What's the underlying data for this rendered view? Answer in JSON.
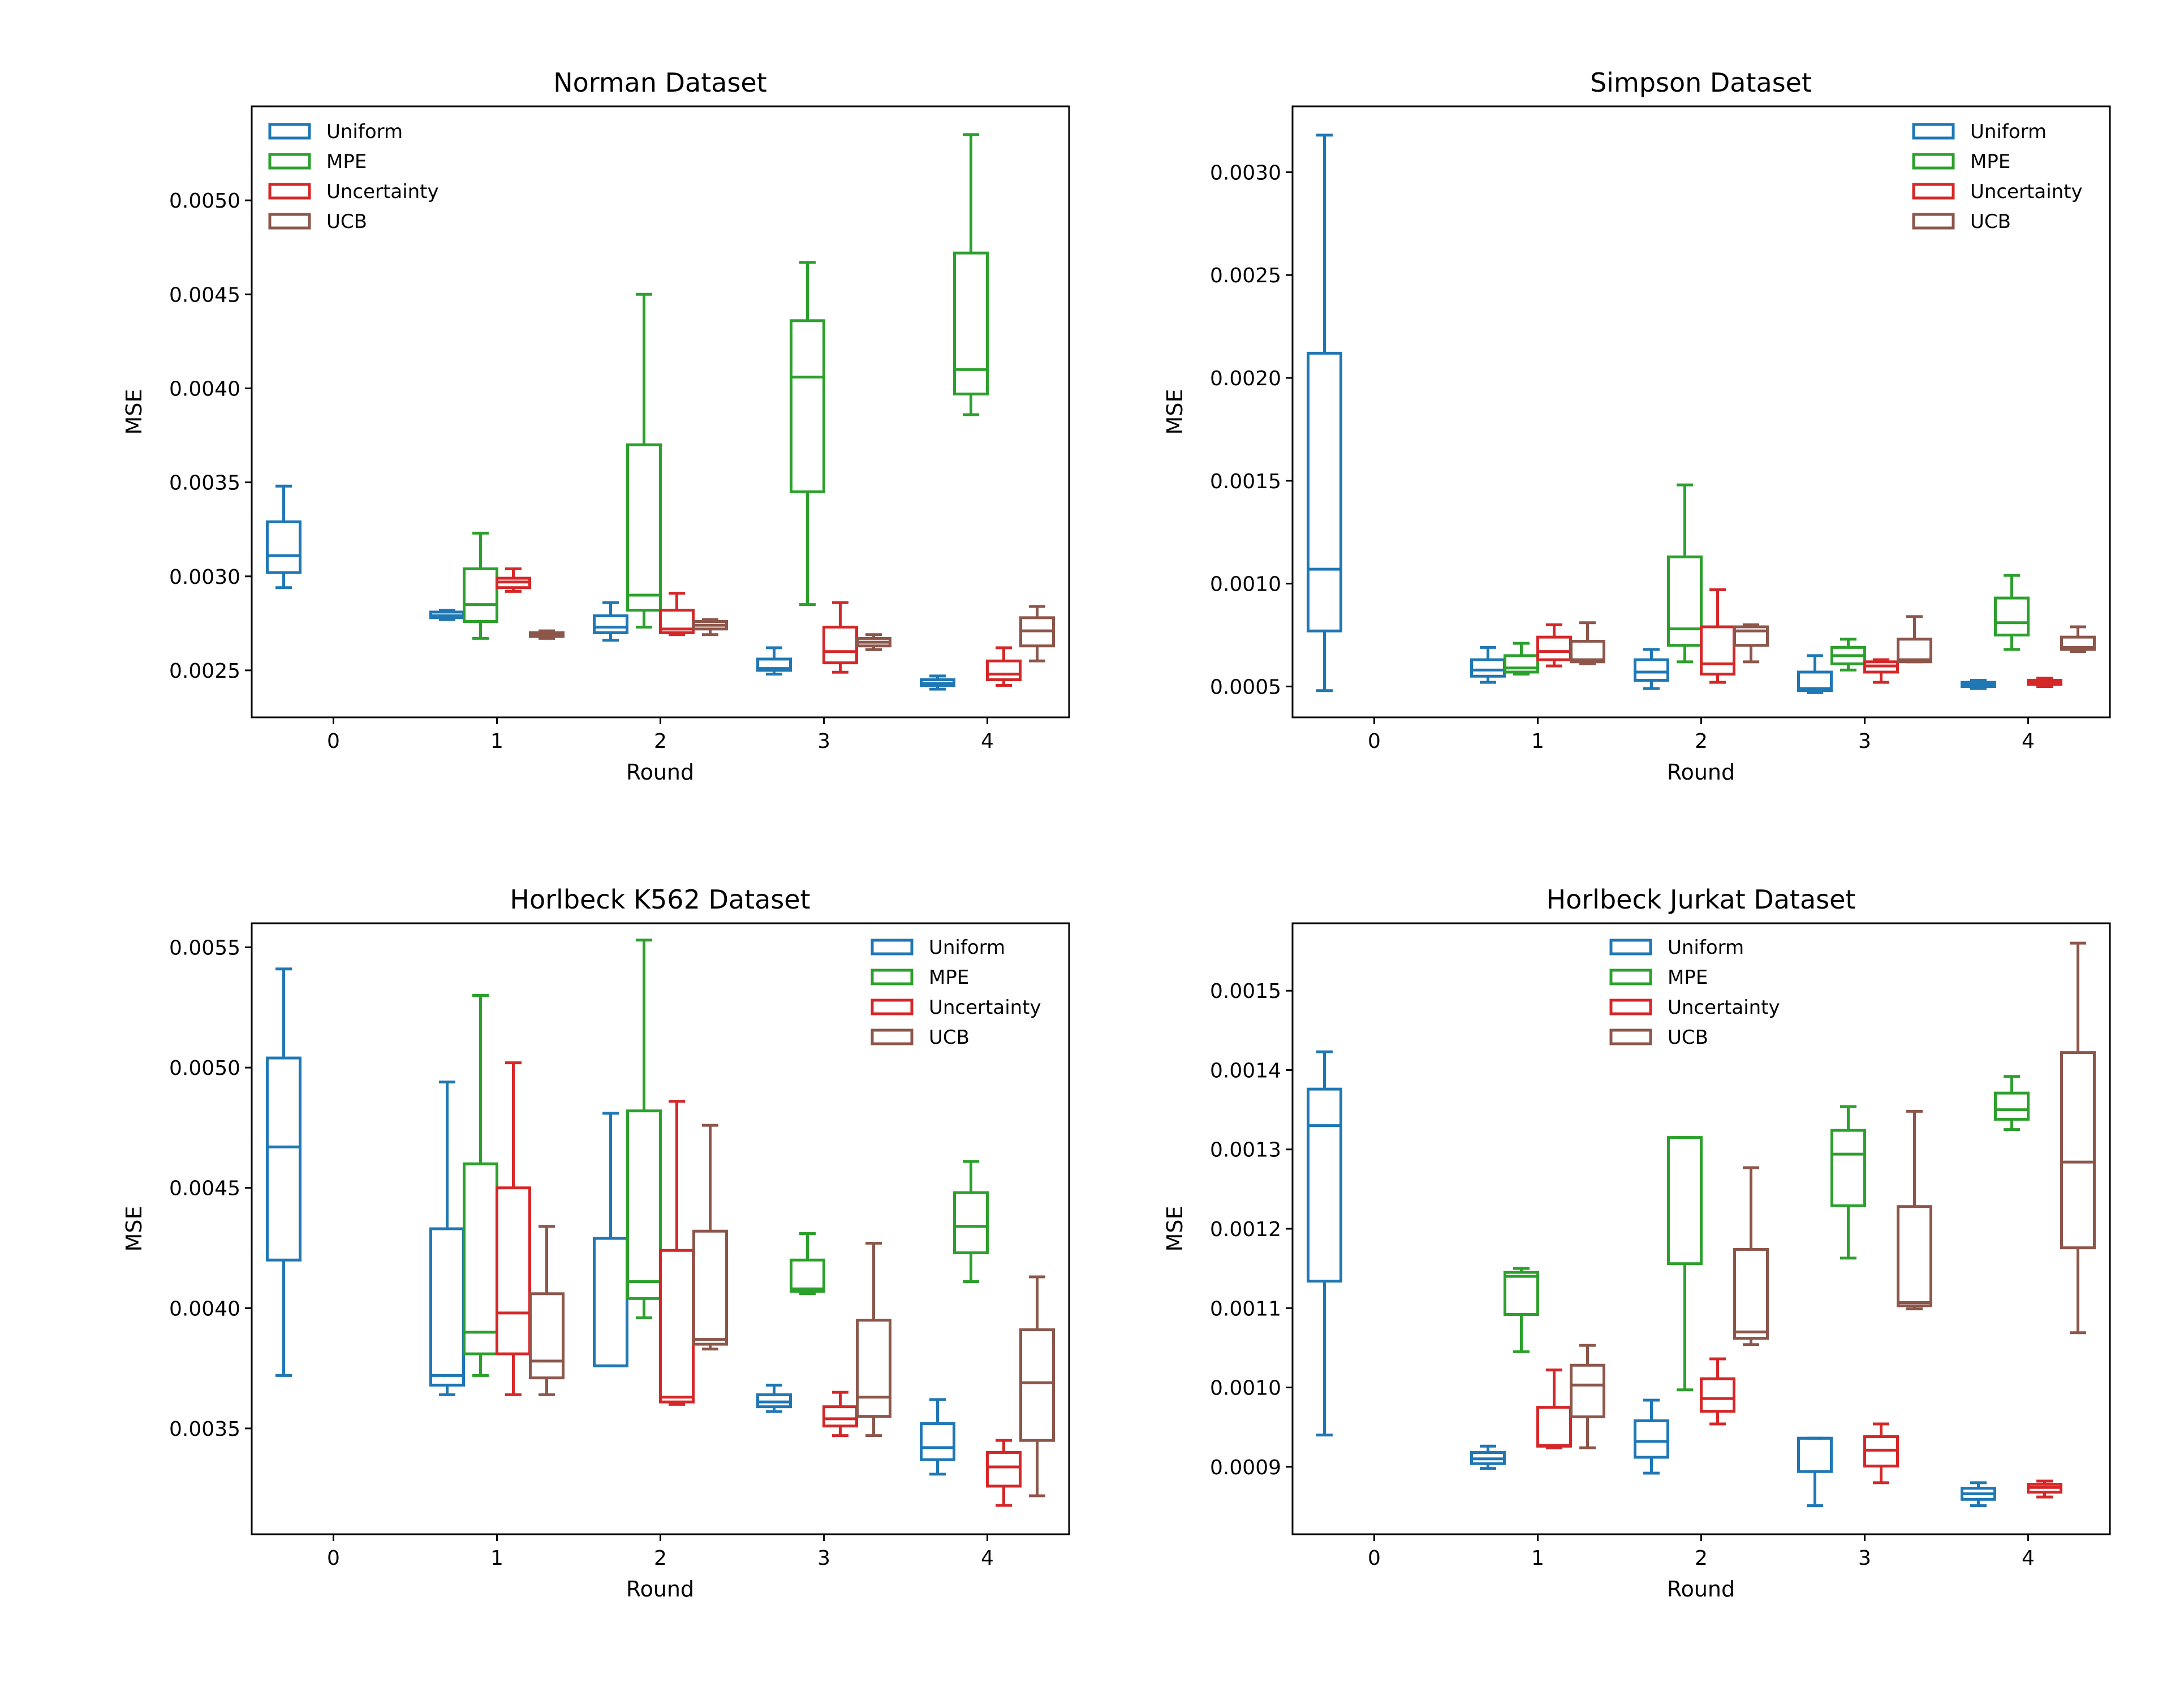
{
  "chart_data": [
    {
      "type": "box",
      "title": "Norman Dataset",
      "xlabel": "Round",
      "ylabel": "MSE",
      "categories": [
        "0",
        "1",
        "2",
        "3",
        "4"
      ],
      "ylim": [
        0.00225,
        0.0055
      ],
      "yticks": [
        "0.0025",
        "0.0030",
        "0.0035",
        "0.0040",
        "0.0045",
        "0.0050"
      ],
      "legend_position": "top-left",
      "series": [
        {
          "name": "Uniform",
          "color": "#1f77b4",
          "boxes": [
            {
              "round": 0,
              "whislo": 0.00294,
              "q1": 0.00302,
              "med": 0.00311,
              "q3": 0.00329,
              "whishi": 0.00348
            },
            {
              "round": 1,
              "whislo": 0.00277,
              "q1": 0.00278,
              "med": 0.00279,
              "q3": 0.00281,
              "whishi": 0.00282
            },
            {
              "round": 2,
              "whislo": 0.00266,
              "q1": 0.0027,
              "med": 0.00273,
              "q3": 0.00279,
              "whishi": 0.00286
            },
            {
              "round": 3,
              "whislo": 0.00248,
              "q1": 0.0025,
              "med": 0.00251,
              "q3": 0.00256,
              "whishi": 0.00262
            },
            {
              "round": 4,
              "whislo": 0.0024,
              "q1": 0.00242,
              "med": 0.00243,
              "q3": 0.00245,
              "whishi": 0.00247
            }
          ]
        },
        {
          "name": "MPE",
          "color": "#2ca02c",
          "boxes": [
            {
              "round": 1,
              "whislo": 0.00267,
              "q1": 0.00276,
              "med": 0.00285,
              "q3": 0.00304,
              "whishi": 0.00323
            },
            {
              "round": 2,
              "whislo": 0.00273,
              "q1": 0.00282,
              "med": 0.0029,
              "q3": 0.0037,
              "whishi": 0.0045
            },
            {
              "round": 3,
              "whislo": 0.00285,
              "q1": 0.00345,
              "med": 0.00406,
              "q3": 0.00436,
              "whishi": 0.00467
            },
            {
              "round": 4,
              "whislo": 0.00386,
              "q1": 0.00397,
              "med": 0.0041,
              "q3": 0.00472,
              "whishi": 0.00535
            }
          ]
        },
        {
          "name": "Uncertainty",
          "color": "#d62728",
          "boxes": [
            {
              "round": 1,
              "whislo": 0.00292,
              "q1": 0.00294,
              "med": 0.00297,
              "q3": 0.00299,
              "whishi": 0.00304
            },
            {
              "round": 2,
              "whislo": 0.00269,
              "q1": 0.0027,
              "med": 0.00272,
              "q3": 0.00282,
              "whishi": 0.00291
            },
            {
              "round": 3,
              "whislo": 0.00249,
              "q1": 0.00254,
              "med": 0.0026,
              "q3": 0.00273,
              "whishi": 0.00286
            },
            {
              "round": 4,
              "whislo": 0.00242,
              "q1": 0.00245,
              "med": 0.00248,
              "q3": 0.00255,
              "whishi": 0.00262
            }
          ]
        },
        {
          "name": "UCB",
          "color": "#8c564b",
          "boxes": [
            {
              "round": 1,
              "whislo": 0.00267,
              "q1": 0.00268,
              "med": 0.00269,
              "q3": 0.0027,
              "whishi": 0.00271
            },
            {
              "round": 2,
              "whislo": 0.00269,
              "q1": 0.00272,
              "med": 0.00274,
              "q3": 0.00276,
              "whishi": 0.00277
            },
            {
              "round": 3,
              "whislo": 0.00261,
              "q1": 0.00263,
              "med": 0.00265,
              "q3": 0.00267,
              "whishi": 0.00269
            },
            {
              "round": 4,
              "whislo": 0.00255,
              "q1": 0.00263,
              "med": 0.00271,
              "q3": 0.00278,
              "whishi": 0.00284
            }
          ]
        }
      ]
    },
    {
      "type": "box",
      "title": "Simpson Dataset",
      "xlabel": "Round",
      "ylabel": "MSE",
      "categories": [
        "0",
        "1",
        "2",
        "3",
        "4"
      ],
      "ylim": [
        0.00035,
        0.00332
      ],
      "yticks": [
        "0.0005",
        "0.0010",
        "0.0015",
        "0.0020",
        "0.0025",
        "0.0030"
      ],
      "legend_position": "top-right",
      "series": [
        {
          "name": "Uniform",
          "color": "#1f77b4",
          "boxes": [
            {
              "round": 0,
              "whislo": 0.00048,
              "q1": 0.00077,
              "med": 0.00107,
              "q3": 0.00212,
              "whishi": 0.00318
            },
            {
              "round": 1,
              "whislo": 0.00052,
              "q1": 0.00055,
              "med": 0.00058,
              "q3": 0.00063,
              "whishi": 0.00069
            },
            {
              "round": 2,
              "whislo": 0.00049,
              "q1": 0.00053,
              "med": 0.00057,
              "q3": 0.00063,
              "whishi": 0.00068
            },
            {
              "round": 3,
              "whislo": 0.00047,
              "q1": 0.00048,
              "med": 0.00049,
              "q3": 0.00057,
              "whishi": 0.00065
            },
            {
              "round": 4,
              "whislo": 0.00049,
              "q1": 0.0005,
              "med": 0.00051,
              "q3": 0.00052,
              "whishi": 0.00053
            }
          ]
        },
        {
          "name": "MPE",
          "color": "#2ca02c",
          "boxes": [
            {
              "round": 1,
              "whislo": 0.00056,
              "q1": 0.00057,
              "med": 0.00059,
              "q3": 0.00065,
              "whishi": 0.00071
            },
            {
              "round": 2,
              "whislo": 0.00062,
              "q1": 0.0007,
              "med": 0.00078,
              "q3": 0.00113,
              "whishi": 0.00148
            },
            {
              "round": 3,
              "whislo": 0.00058,
              "q1": 0.00061,
              "med": 0.00065,
              "q3": 0.00069,
              "whishi": 0.00073
            },
            {
              "round": 4,
              "whislo": 0.00068,
              "q1": 0.00075,
              "med": 0.00081,
              "q3": 0.00093,
              "whishi": 0.00104
            }
          ]
        },
        {
          "name": "Uncertainty",
          "color": "#d62728",
          "boxes": [
            {
              "round": 1,
              "whislo": 0.0006,
              "q1": 0.00063,
              "med": 0.00067,
              "q3": 0.00074,
              "whishi": 0.0008
            },
            {
              "round": 2,
              "whislo": 0.00052,
              "q1": 0.00056,
              "med": 0.00061,
              "q3": 0.00079,
              "whishi": 0.00097
            },
            {
              "round": 3,
              "whislo": 0.00052,
              "q1": 0.00057,
              "med": 0.0006,
              "q3": 0.00062,
              "whishi": 0.00063
            },
            {
              "round": 4,
              "whislo": 0.0005,
              "q1": 0.00051,
              "med": 0.00052,
              "q3": 0.00053,
              "whishi": 0.00054
            }
          ]
        },
        {
          "name": "UCB",
          "color": "#8c564b",
          "boxes": [
            {
              "round": 1,
              "whislo": 0.00061,
              "q1": 0.00062,
              "med": 0.00063,
              "q3": 0.00072,
              "whishi": 0.00081
            },
            {
              "round": 2,
              "whislo": 0.00062,
              "q1": 0.0007,
              "med": 0.00077,
              "q3": 0.00079,
              "whishi": 0.0008
            },
            {
              "round": 3,
              "whislo": 0.00062,
              "q1": 0.00062,
              "med": 0.00063,
              "q3": 0.00073,
              "whishi": 0.00084
            },
            {
              "round": 4,
              "whislo": 0.00067,
              "q1": 0.00068,
              "med": 0.00069,
              "q3": 0.00074,
              "whishi": 0.00079
            }
          ]
        }
      ]
    },
    {
      "type": "box",
      "title": "Horlbeck K562 Dataset",
      "xlabel": "Round",
      "ylabel": "MSE",
      "categories": [
        "0",
        "1",
        "2",
        "3",
        "4"
      ],
      "ylim": [
        0.00306,
        0.0056
      ],
      "yticks": [
        "0.0035",
        "0.0040",
        "0.0045",
        "0.0050",
        "0.0055"
      ],
      "legend_position": "top-right",
      "series": [
        {
          "name": "Uniform",
          "color": "#1f77b4",
          "boxes": [
            {
              "round": 0,
              "whislo": 0.00372,
              "q1": 0.0042,
              "med": 0.00467,
              "q3": 0.00504,
              "whishi": 0.00541
            },
            {
              "round": 1,
              "whislo": 0.00364,
              "q1": 0.00368,
              "med": 0.00372,
              "q3": 0.00433,
              "whishi": 0.00494
            },
            {
              "round": 2,
              "whislo": 0.00376,
              "q1": 0.00376,
              "med": 0.00376,
              "q3": 0.00429,
              "whishi": 0.00481
            },
            {
              "round": 3,
              "whislo": 0.00357,
              "q1": 0.00359,
              "med": 0.00361,
              "q3": 0.00364,
              "whishi": 0.00368
            },
            {
              "round": 4,
              "whislo": 0.00331,
              "q1": 0.00337,
              "med": 0.00342,
              "q3": 0.00352,
              "whishi": 0.00362
            }
          ]
        },
        {
          "name": "MPE",
          "color": "#2ca02c",
          "boxes": [
            {
              "round": 1,
              "whislo": 0.00372,
              "q1": 0.00381,
              "med": 0.0039,
              "q3": 0.0046,
              "whishi": 0.0053
            },
            {
              "round": 2,
              "whislo": 0.00396,
              "q1": 0.00404,
              "med": 0.00411,
              "q3": 0.00482,
              "whishi": 0.00553
            },
            {
              "round": 3,
              "whislo": 0.00406,
              "q1": 0.00407,
              "med": 0.00408,
              "q3": 0.0042,
              "whishi": 0.00431
            },
            {
              "round": 4,
              "whislo": 0.00411,
              "q1": 0.00423,
              "med": 0.00434,
              "q3": 0.00448,
              "whishi": 0.00461
            }
          ]
        },
        {
          "name": "Uncertainty",
          "color": "#d62728",
          "boxes": [
            {
              "round": 1,
              "whislo": 0.00364,
              "q1": 0.00381,
              "med": 0.00398,
              "q3": 0.0045,
              "whishi": 0.00502
            },
            {
              "round": 2,
              "whislo": 0.0036,
              "q1": 0.00361,
              "med": 0.00363,
              "q3": 0.00424,
              "whishi": 0.00486
            },
            {
              "round": 3,
              "whislo": 0.00347,
              "q1": 0.00351,
              "med": 0.00354,
              "q3": 0.00359,
              "whishi": 0.00365
            },
            {
              "round": 4,
              "whislo": 0.00318,
              "q1": 0.00326,
              "med": 0.00334,
              "q3": 0.0034,
              "whishi": 0.00345
            }
          ]
        },
        {
          "name": "UCB",
          "color": "#8c564b",
          "boxes": [
            {
              "round": 1,
              "whislo": 0.00364,
              "q1": 0.00371,
              "med": 0.00378,
              "q3": 0.00406,
              "whishi": 0.00434
            },
            {
              "round": 2,
              "whislo": 0.00383,
              "q1": 0.00385,
              "med": 0.00387,
              "q3": 0.00432,
              "whishi": 0.00476
            },
            {
              "round": 3,
              "whislo": 0.00347,
              "q1": 0.00355,
              "med": 0.00363,
              "q3": 0.00395,
              "whishi": 0.00427
            },
            {
              "round": 4,
              "whislo": 0.00322,
              "q1": 0.00345,
              "med": 0.00369,
              "q3": 0.00391,
              "whishi": 0.00413
            }
          ]
        }
      ]
    },
    {
      "type": "box",
      "title": "Horlbeck Jurkat Dataset",
      "xlabel": "Round",
      "ylabel": "MSE",
      "categories": [
        "0",
        "1",
        "2",
        "3",
        "4"
      ],
      "ylim": [
        0.000815,
        0.001585
      ],
      "yticks": [
        "0.0009",
        "0.0010",
        "0.0011",
        "0.0012",
        "0.0013",
        "0.0014",
        "0.0015"
      ],
      "legend_position": "top-center",
      "series": [
        {
          "name": "Uniform",
          "color": "#1f77b4",
          "boxes": [
            {
              "round": 0,
              "whislo": 0.00094,
              "q1": 0.001134,
              "med": 0.00133,
              "q3": 0.001376,
              "whishi": 0.001423
            },
            {
              "round": 1,
              "whislo": 0.000898,
              "q1": 0.000904,
              "med": 0.00091,
              "q3": 0.000918,
              "whishi": 0.000926
            },
            {
              "round": 2,
              "whislo": 0.000892,
              "q1": 0.000912,
              "med": 0.000932,
              "q3": 0.000958,
              "whishi": 0.000984
            },
            {
              "round": 3,
              "whislo": 0.000851,
              "q1": 0.000894,
              "med": 0.000936,
              "q3": 0.000936,
              "whishi": 0.000936
            },
            {
              "round": 4,
              "whislo": 0.000851,
              "q1": 0.000859,
              "med": 0.000866,
              "q3": 0.000873,
              "whishi": 0.00088
            }
          ]
        },
        {
          "name": "MPE",
          "color": "#2ca02c",
          "boxes": [
            {
              "round": 1,
              "whislo": 0.001045,
              "q1": 0.001092,
              "med": 0.00114,
              "q3": 0.001145,
              "whishi": 0.00115
            },
            {
              "round": 2,
              "whislo": 0.000997,
              "q1": 0.001156,
              "med": 0.001315,
              "q3": 0.001315,
              "whishi": 0.001315
            },
            {
              "round": 3,
              "whislo": 0.001163,
              "q1": 0.001229,
              "med": 0.001294,
              "q3": 0.001324,
              "whishi": 0.001354
            },
            {
              "round": 4,
              "whislo": 0.001325,
              "q1": 0.001338,
              "med": 0.00135,
              "q3": 0.001371,
              "whishi": 0.001392
            }
          ]
        },
        {
          "name": "Uncertainty",
          "color": "#d62728",
          "boxes": [
            {
              "round": 1,
              "whislo": 0.000924,
              "q1": 0.000926,
              "med": 0.000927,
              "q3": 0.000975,
              "whishi": 0.001022
            },
            {
              "round": 2,
              "whislo": 0.000954,
              "q1": 0.00097,
              "med": 0.000986,
              "q3": 0.001011,
              "whishi": 0.001036
            },
            {
              "round": 3,
              "whislo": 0.00088,
              "q1": 0.000901,
              "med": 0.000921,
              "q3": 0.000938,
              "whishi": 0.000954
            },
            {
              "round": 4,
              "whislo": 0.000862,
              "q1": 0.000868,
              "med": 0.000874,
              "q3": 0.000878,
              "whishi": 0.000882
            }
          ]
        },
        {
          "name": "UCB",
          "color": "#8c564b",
          "boxes": [
            {
              "round": 1,
              "whislo": 0.000924,
              "q1": 0.000963,
              "med": 0.001003,
              "q3": 0.001028,
              "whishi": 0.001053
            },
            {
              "round": 2,
              "whislo": 0.001054,
              "q1": 0.001062,
              "med": 0.00107,
              "q3": 0.001174,
              "whishi": 0.001277
            },
            {
              "round": 3,
              "whislo": 0.001099,
              "q1": 0.001103,
              "med": 0.001107,
              "q3": 0.001228,
              "whishi": 0.001348
            },
            {
              "round": 4,
              "whislo": 0.001069,
              "q1": 0.001176,
              "med": 0.001284,
              "q3": 0.001422,
              "whishi": 0.00156
            }
          ]
        }
      ]
    }
  ]
}
